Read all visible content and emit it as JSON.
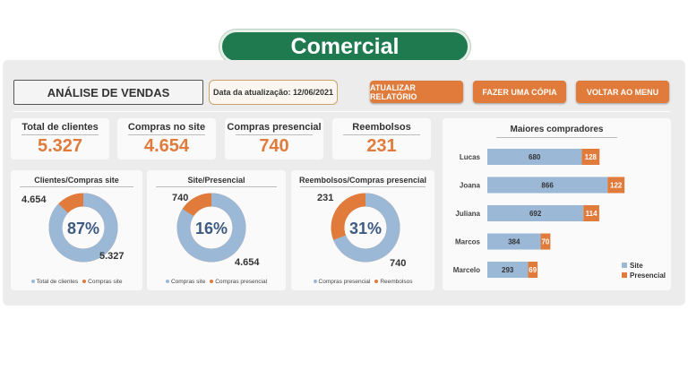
{
  "title": "Comercial",
  "header": {
    "heading": "ANÁLISE DE VENDAS",
    "date_label": "Data da atualização: 12/06/2021",
    "buttons": [
      "ATUALIZAR RELATÓRIO",
      "FAZER UMA CÓPIA",
      "VOLTAR AO MENU"
    ]
  },
  "kpis": [
    {
      "label": "Total de clientes",
      "value": "5.327"
    },
    {
      "label": "Compras no site",
      "value": "4.654"
    },
    {
      "label": "Compras presencial",
      "value": "740"
    },
    {
      "label": "Reembolsos",
      "value": "231"
    }
  ],
  "colors": {
    "blue": "#9bb8d6",
    "orange": "#e07b3c",
    "pct": "#3d5a80"
  },
  "donuts": [
    {
      "title": "Clientes/Compras site",
      "pct": "87%",
      "blue_frac": 0.87,
      "label_orange": "4.654",
      "label_blue": "5.327",
      "legend": [
        "Total de clientes",
        "Compras site"
      ]
    },
    {
      "title": "Site/Presencial",
      "pct": "16%",
      "blue_frac": 0.84,
      "label_orange": "740",
      "label_blue": "4.654",
      "legend": [
        "Compras site",
        "Compras presencial"
      ]
    },
    {
      "title": "Reembolsos/Compras presencial",
      "pct": "31%",
      "blue_frac": 0.69,
      "label_orange": "231",
      "label_blue": "740",
      "legend": [
        "Compras presencial",
        "Reembolsos"
      ]
    }
  ],
  "chart_data": {
    "type": "bar",
    "title": "Maiores compradores",
    "categories": [
      "Lucas",
      "Joana",
      "Juliana",
      "Marcos",
      "Marcelo"
    ],
    "series": [
      {
        "name": "Site",
        "values": [
          680,
          866,
          692,
          384,
          293
        ]
      },
      {
        "name": "Presencial",
        "values": [
          128,
          122,
          114,
          70,
          69
        ]
      }
    ],
    "legend": "bottom-right",
    "stacked": true
  }
}
